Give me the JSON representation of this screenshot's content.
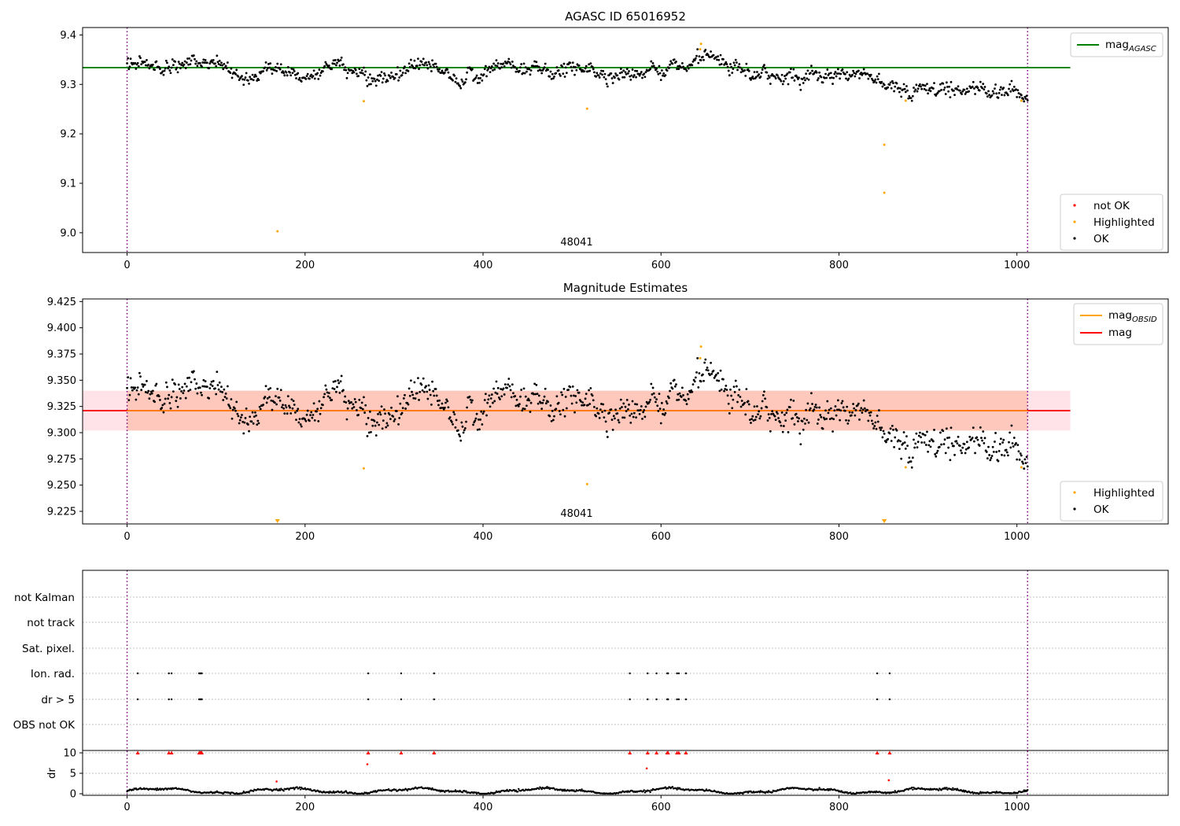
{
  "figure": {
    "top": {
      "title": "AGASC ID 65016952",
      "annotation": "48041",
      "ylim": [
        8.96,
        9.415
      ],
      "yticks": [
        "9.0",
        "9.1",
        "9.2",
        "9.3",
        "9.4"
      ],
      "legend_lines": [
        {
          "label": "mag",
          "sub": "AGASC",
          "color": "#008000"
        }
      ],
      "legend_points": [
        {
          "label": "not OK",
          "color": "#ff0000"
        },
        {
          "label": "Highlighted",
          "color": "#ffa500"
        },
        {
          "label": "OK",
          "color": "#000000"
        }
      ]
    },
    "middle": {
      "title": "Magnitude Estimates",
      "annotation": "48041",
      "ylim": [
        9.213,
        9.4275
      ],
      "yticks": [
        "9.225",
        "9.250",
        "9.275",
        "9.300",
        "9.325",
        "9.350",
        "9.375",
        "9.400",
        "9.425"
      ],
      "legend_lines": [
        {
          "label": "mag",
          "sub": "OBSID",
          "color": "#ffa500"
        },
        {
          "label": "mag",
          "sub": "",
          "color": "#ff0000"
        }
      ],
      "legend_points": [
        {
          "label": "Highlighted",
          "color": "#ffa500"
        },
        {
          "label": "OK",
          "color": "#000000"
        }
      ]
    },
    "bottom": {
      "flag_labels": [
        "not Kalman",
        "not track",
        "Sat. pixel.",
        "Ion. rad.",
        "dr > 5",
        "OBS not OK"
      ],
      "dr_label": "dr",
      "dr_yticks": [
        "0",
        "5",
        "10"
      ]
    },
    "xticks": [
      "0",
      "200",
      "400",
      "600",
      "800",
      "1000"
    ]
  },
  "chart_data": {
    "type": "scatter",
    "x_range": [
      -50,
      1170
    ],
    "obsid_boundaries": [
      0,
      1012
    ],
    "mag_agasc": 9.334,
    "mag_mean": 9.321,
    "mag_band": [
      9.302,
      9.34
    ],
    "mag_obsid": 9.321,
    "highlighted_points": [
      {
        "x": 169,
        "y": 9.003
      },
      {
        "x": 266,
        "y": 9.266
      },
      {
        "x": 517,
        "y": 9.251
      },
      {
        "x": 645,
        "y": 9.382
      },
      {
        "x": 644,
        "y": 9.371
      },
      {
        "x": 851,
        "y": 9.178
      },
      {
        "x": 851,
        "y": 9.081
      },
      {
        "x": 875,
        "y": 9.267
      },
      {
        "x": 1005,
        "y": 9.267
      }
    ],
    "ok_series_anchors": [
      {
        "x": 0,
        "y": 9.348
      },
      {
        "x": 30,
        "y": 9.33
      },
      {
        "x": 70,
        "y": 9.345
      },
      {
        "x": 110,
        "y": 9.335
      },
      {
        "x": 130,
        "y": 9.318
      },
      {
        "x": 160,
        "y": 9.338
      },
      {
        "x": 200,
        "y": 9.32
      },
      {
        "x": 240,
        "y": 9.33
      },
      {
        "x": 290,
        "y": 9.308
      },
      {
        "x": 330,
        "y": 9.34
      },
      {
        "x": 380,
        "y": 9.308
      },
      {
        "x": 420,
        "y": 9.332
      },
      {
        "x": 470,
        "y": 9.325
      },
      {
        "x": 520,
        "y": 9.33
      },
      {
        "x": 550,
        "y": 9.32
      },
      {
        "x": 600,
        "y": 9.335
      },
      {
        "x": 625,
        "y": 9.325
      },
      {
        "x": 645,
        "y": 9.358
      },
      {
        "x": 665,
        "y": 9.34
      },
      {
        "x": 700,
        "y": 9.318
      },
      {
        "x": 760,
        "y": 9.318
      },
      {
        "x": 820,
        "y": 9.323
      },
      {
        "x": 848,
        "y": 9.312
      },
      {
        "x": 870,
        "y": 9.29
      },
      {
        "x": 950,
        "y": 9.292
      },
      {
        "x": 1000,
        "y": 9.288
      },
      {
        "x": 1012,
        "y": 9.28
      }
    ],
    "flags": {
      "Ion. rad.": [
        12,
        47,
        50,
        81,
        82,
        83,
        84,
        271,
        308,
        345,
        565,
        585,
        595,
        607,
        608,
        618,
        620,
        628,
        843,
        857
      ],
      "dr > 5": [
        12,
        47,
        50,
        81,
        82,
        83,
        84,
        271,
        308,
        345,
        565,
        585,
        595,
        607,
        608,
        618,
        620,
        628,
        843,
        857
      ]
    },
    "dr_high": [
      {
        "x": 12,
        "y": 10
      },
      {
        "x": 47,
        "y": 10
      },
      {
        "x": 50,
        "y": 10
      },
      {
        "x": 81,
        "y": 10
      },
      {
        "x": 82,
        "y": 10
      },
      {
        "x": 83,
        "y": 10
      },
      {
        "x": 84,
        "y": 10
      },
      {
        "x": 271,
        "y": 10
      },
      {
        "x": 270,
        "y": 7.2
      },
      {
        "x": 308,
        "y": 10
      },
      {
        "x": 345,
        "y": 10
      },
      {
        "x": 168,
        "y": 3.0
      },
      {
        "x": 565,
        "y": 10
      },
      {
        "x": 585,
        "y": 10
      },
      {
        "x": 584,
        "y": 6.2
      },
      {
        "x": 595,
        "y": 10
      },
      {
        "x": 607,
        "y": 10
      },
      {
        "x": 608,
        "y": 10
      },
      {
        "x": 618,
        "y": 10
      },
      {
        "x": 620,
        "y": 10
      },
      {
        "x": 628,
        "y": 10
      },
      {
        "x": 843,
        "y": 10
      },
      {
        "x": 857,
        "y": 10
      },
      {
        "x": 856,
        "y": 3.3
      }
    ],
    "dr_baseline_range": [
      0,
      1.6
    ]
  }
}
